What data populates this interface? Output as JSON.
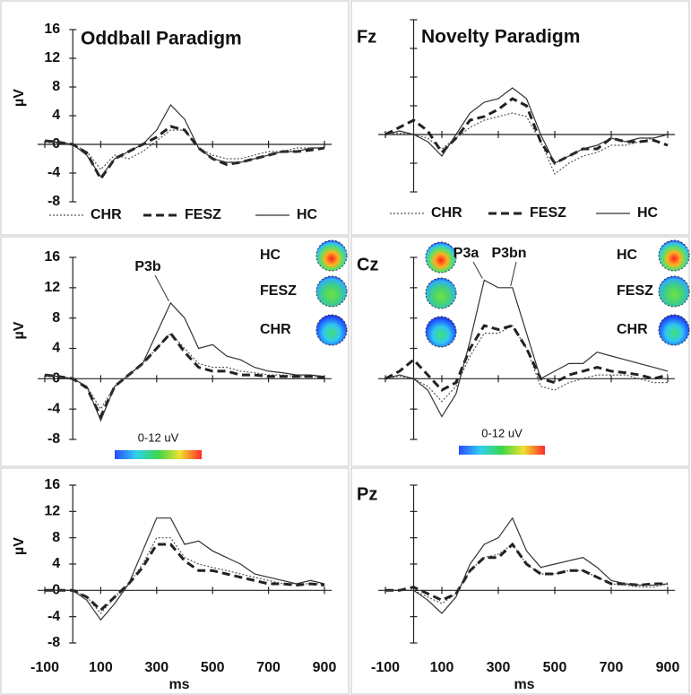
{
  "chart_data": [
    {
      "type": "line",
      "title": "Oddball Paradigm",
      "ylabel": "µV",
      "show_ytick_labels": true,
      "show_xtick_labels": false,
      "legend": "below",
      "x": [
        -100,
        -50,
        0,
        50,
        100,
        150,
        200,
        250,
        300,
        350,
        400,
        450,
        500,
        550,
        600,
        650,
        700,
        750,
        800,
        850,
        900
      ],
      "xlim": [
        -100,
        900
      ],
      "xticks": [
        -100,
        100,
        300,
        500,
        700,
        900
      ],
      "ylim": [
        -8,
        16
      ],
      "yticks": [
        -8,
        -4,
        0,
        4,
        8,
        12,
        16
      ],
      "series": [
        {
          "name": "CHR",
          "color": "#555",
          "dash": "dotted",
          "width": 1.2,
          "values": [
            0.3,
            0.2,
            0,
            -1,
            -3.5,
            -1.5,
            -2,
            -1,
            0.5,
            2,
            2,
            -0.5,
            -1.5,
            -2,
            -2,
            -1.5,
            -1,
            -1,
            -0.5,
            -0.5,
            -0.5
          ]
        },
        {
          "name": "FESZ",
          "color": "#222",
          "dash": "dashed",
          "width": 3,
          "values": [
            0.5,
            0.3,
            0,
            -1.2,
            -4.8,
            -2,
            -1,
            0,
            1,
            2.5,
            2,
            -0.5,
            -2,
            -2.8,
            -2.5,
            -2,
            -1.5,
            -1,
            -1,
            -0.8,
            -0.5
          ]
        },
        {
          "name": "HC",
          "color": "#333",
          "dash": "solid",
          "width": 1.2,
          "values": [
            0.5,
            0.3,
            0,
            -1.5,
            -4.5,
            -2,
            -1,
            0,
            2,
            5.5,
            3.5,
            -0.5,
            -2,
            -2.5,
            -2.5,
            -2,
            -1.5,
            -1,
            -1,
            -0.5,
            -0.5
          ]
        }
      ]
    },
    {
      "type": "line",
      "title": "Novelty Paradigm",
      "electrode": "Fz",
      "show_ytick_labels": false,
      "show_xtick_labels": false,
      "legend": "below",
      "x": [
        -100,
        -50,
        0,
        50,
        100,
        150,
        200,
        250,
        300,
        350,
        400,
        450,
        500,
        550,
        600,
        650,
        700,
        750,
        800,
        850,
        900
      ],
      "xlim": [
        -100,
        900
      ],
      "xticks": [
        -100,
        100,
        300,
        500,
        700,
        900
      ],
      "ylim": [
        -8,
        16
      ],
      "yticks": [
        -8,
        -4,
        0,
        4,
        8,
        12,
        16
      ],
      "series": [
        {
          "name": "CHR",
          "color": "#555",
          "dash": "dotted",
          "width": 1.2,
          "values": [
            0,
            0.2,
            0,
            -0.5,
            -2,
            -0.5,
            1,
            2,
            2.5,
            3,
            2.5,
            -1,
            -5.5,
            -4,
            -3,
            -2.5,
            -1.5,
            -1.5,
            -1,
            -0.5,
            0
          ]
        },
        {
          "name": "FESZ",
          "color": "#222",
          "dash": "dashed",
          "width": 3,
          "values": [
            0,
            1,
            2,
            0.5,
            -2.5,
            -0.5,
            2,
            2.5,
            3.5,
            5,
            4,
            -1,
            -4,
            -3,
            -2,
            -2,
            -0.5,
            -1,
            -1,
            -0.8,
            -1.5
          ]
        },
        {
          "name": "HC",
          "color": "#333",
          "dash": "solid",
          "width": 1.2,
          "values": [
            0,
            0.5,
            0,
            -1,
            -3,
            0,
            3,
            4.5,
            5,
            6.5,
            5,
            0,
            -4,
            -3,
            -2,
            -1.5,
            -0.5,
            -1,
            -0.5,
            -0.5,
            0
          ]
        }
      ]
    },
    {
      "type": "line",
      "ylabel": "µV",
      "show_ytick_labels": true,
      "show_xtick_labels": false,
      "legend": "topomap",
      "annotations": [
        "P3b"
      ],
      "colorbar_label": "0-12 uV",
      "x": [
        -100,
        -50,
        0,
        50,
        100,
        150,
        200,
        250,
        300,
        350,
        400,
        450,
        500,
        550,
        600,
        650,
        700,
        750,
        800,
        850,
        900
      ],
      "xlim": [
        -100,
        900
      ],
      "xticks": [
        -100,
        100,
        300,
        500,
        700,
        900
      ],
      "ylim": [
        -8,
        16
      ],
      "yticks": [
        -8,
        -4,
        0,
        4,
        8,
        12,
        16
      ],
      "series": [
        {
          "name": "CHR",
          "color": "#555",
          "dash": "dotted",
          "width": 1.2,
          "values": [
            0.3,
            0.3,
            0,
            -1,
            -4,
            -1,
            0.5,
            2,
            4,
            6,
            4,
            2,
            1.5,
            1.5,
            1,
            0.8,
            0.5,
            0.5,
            0.3,
            0.3,
            0.3
          ]
        },
        {
          "name": "FESZ",
          "color": "#222",
          "dash": "dashed",
          "width": 3,
          "values": [
            0.5,
            0.3,
            0,
            -1.2,
            -5,
            -1,
            0.5,
            2,
            4,
            6,
            3.5,
            1.5,
            1,
            1,
            0.5,
            0.5,
            0.3,
            0.3,
            0.3,
            0.3,
            0.2
          ]
        },
        {
          "name": "HC",
          "color": "#333",
          "dash": "solid",
          "width": 1.2,
          "values": [
            0.5,
            0.3,
            0,
            -1,
            -5.5,
            -1,
            0.5,
            2,
            6,
            10,
            8,
            4,
            4.5,
            3,
            2.5,
            1.5,
            1,
            0.8,
            0.5,
            0.5,
            0.3
          ]
        }
      ]
    },
    {
      "type": "line",
      "electrode": "Cz",
      "show_ytick_labels": false,
      "show_xtick_labels": false,
      "legend": "topomap",
      "annotations": [
        "P3a",
        "P3bn"
      ],
      "colorbar_label": "0-12 uV",
      "x": [
        -100,
        -50,
        0,
        50,
        100,
        150,
        200,
        250,
        300,
        350,
        400,
        450,
        500,
        550,
        600,
        650,
        700,
        750,
        800,
        850,
        900
      ],
      "xlim": [
        -100,
        900
      ],
      "xticks": [
        -100,
        100,
        300,
        500,
        700,
        900
      ],
      "ylim": [
        -8,
        16
      ],
      "yticks": [
        -8,
        -4,
        0,
        4,
        8,
        12,
        16
      ],
      "series": [
        {
          "name": "CHR",
          "color": "#555",
          "dash": "dotted",
          "width": 1.2,
          "values": [
            0,
            0.3,
            0,
            -1,
            -3,
            -1,
            3,
            6,
            6,
            7,
            4,
            -1,
            -1.5,
            -0.5,
            0,
            0.5,
            0.5,
            0.5,
            0,
            -0.5,
            -0.5
          ]
        },
        {
          "name": "FESZ",
          "color": "#222",
          "dash": "dashed",
          "width": 3,
          "values": [
            0,
            1,
            2.5,
            0.5,
            -1.5,
            -0.5,
            4,
            7,
            6.5,
            7,
            4,
            0,
            -0.5,
            0.5,
            1,
            1.5,
            1,
            0.8,
            0.5,
            0,
            0.5
          ]
        },
        {
          "name": "HC",
          "color": "#333",
          "dash": "solid",
          "width": 1.2,
          "values": [
            0,
            0.5,
            0,
            -1.5,
            -5,
            -2,
            5,
            13,
            12,
            12,
            6,
            0,
            1,
            2,
            2,
            3.5,
            3,
            2.5,
            2,
            1.5,
            1
          ]
        }
      ]
    },
    {
      "type": "line",
      "ylabel": "µV",
      "xlabel": "ms",
      "show_ytick_labels": true,
      "show_xtick_labels": true,
      "x": [
        -100,
        -50,
        0,
        50,
        100,
        150,
        200,
        250,
        300,
        350,
        400,
        450,
        500,
        550,
        600,
        650,
        700,
        750,
        800,
        850,
        900
      ],
      "xlim": [
        -100,
        900
      ],
      "xticks": [
        -100,
        100,
        300,
        500,
        700,
        900
      ],
      "ylim": [
        -8,
        16
      ],
      "yticks": [
        -8,
        -4,
        0,
        4,
        8,
        12,
        16
      ],
      "series": [
        {
          "color": "#555",
          "dash": "dotted",
          "width": 1.2,
          "values": [
            0,
            0,
            0,
            -1,
            -3.5,
            -1,
            1,
            4,
            8,
            8,
            5,
            4,
            3.5,
            3,
            2.5,
            2,
            1.5,
            1,
            1,
            1,
            1
          ]
        },
        {
          "color": "#222",
          "dash": "dashed",
          "width": 3,
          "values": [
            0,
            0,
            0,
            -1,
            -3,
            -1,
            1,
            3.5,
            7,
            7,
            4.5,
            3,
            3,
            2.5,
            2,
            1.5,
            1,
            1,
            0.8,
            1,
            0.8
          ]
        },
        {
          "color": "#333",
          "dash": "solid",
          "width": 1.2,
          "values": [
            0,
            0,
            0,
            -1.5,
            -4.5,
            -2,
            1,
            6,
            11,
            11,
            7,
            7.5,
            6,
            5,
            4,
            2.5,
            2,
            1.5,
            1,
            1.5,
            1
          ]
        }
      ]
    },
    {
      "type": "line",
      "electrode": "Pz",
      "xlabel": "ms",
      "show_ytick_labels": false,
      "show_xtick_labels": true,
      "x": [
        -100,
        -50,
        0,
        50,
        100,
        150,
        200,
        250,
        300,
        350,
        400,
        450,
        500,
        550,
        600,
        650,
        700,
        750,
        800,
        850,
        900
      ],
      "xlim": [
        -100,
        900
      ],
      "xticks": [
        -100,
        100,
        300,
        500,
        700,
        900
      ],
      "ylim": [
        -8,
        16
      ],
      "yticks": [
        -8,
        -4,
        0,
        4,
        8,
        12,
        16
      ],
      "series": [
        {
          "color": "#555",
          "dash": "dotted",
          "width": 1.2,
          "values": [
            0,
            0,
            0,
            -1,
            -2,
            -0.5,
            3,
            5,
            5.5,
            7,
            4,
            2.5,
            2.5,
            3,
            3,
            2,
            1,
            0.8,
            0.5,
            0.5,
            1
          ]
        },
        {
          "color": "#222",
          "dash": "dashed",
          "width": 3,
          "values": [
            0,
            0,
            0.5,
            -0.5,
            -1.5,
            -0.5,
            3,
            5,
            5,
            7,
            4,
            2.5,
            2.5,
            3,
            3,
            2,
            1,
            1,
            0.8,
            1,
            1
          ]
        },
        {
          "color": "#333",
          "dash": "solid",
          "width": 1.2,
          "values": [
            0,
            0,
            0,
            -1.5,
            -3.5,
            -1,
            4,
            7,
            8,
            11,
            6,
            3.5,
            4,
            4.5,
            5,
            3.5,
            1.5,
            1,
            0.8,
            0.8,
            1
          ]
        }
      ]
    }
  ]
}
